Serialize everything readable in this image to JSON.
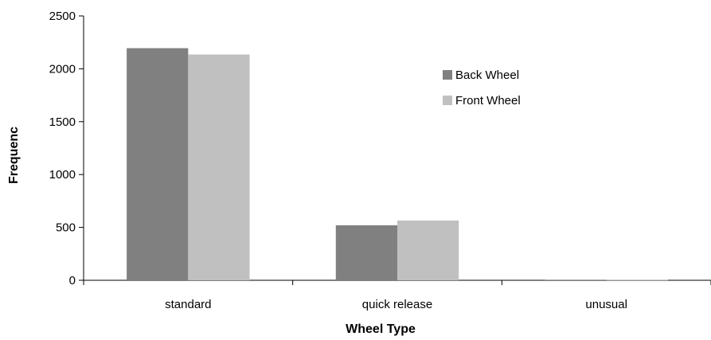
{
  "chart_data": {
    "type": "bar",
    "title": "",
    "xlabel": "Wheel Type",
    "ylabel": "Frequenc",
    "categories": [
      "standard",
      "quick release",
      "unusual"
    ],
    "series": [
      {
        "name": "Back Wheel",
        "values": [
          2195,
          520,
          5
        ],
        "color": "#808080"
      },
      {
        "name": "Front Wheel",
        "values": [
          2135,
          565,
          3
        ],
        "color": "#c0c0c0"
      }
    ],
    "ylim": [
      0,
      2500
    ],
    "yticks": [
      0,
      500,
      1000,
      1500,
      2000,
      2500
    ],
    "grid": false,
    "legend_position": "top-right"
  }
}
